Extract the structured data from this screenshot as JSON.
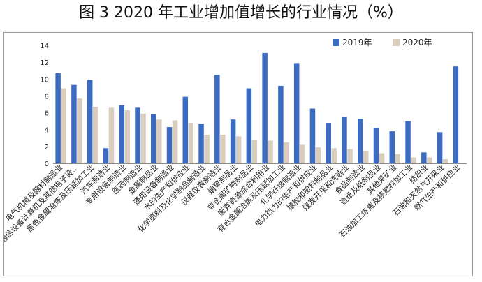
{
  "title": "图 3 2020 年工业增加值增长的行业情况（%）",
  "colors": {
    "s2019": "#3b6cc2",
    "s2020": "#d9cdbd"
  },
  "chart_data": {
    "type": "bar",
    "title": "",
    "xlabel": "",
    "ylabel": "",
    "ylim": [
      0,
      14
    ],
    "yticks": [
      0,
      2,
      4,
      6,
      8,
      10,
      12,
      14
    ],
    "grid": false,
    "legend_position": "top-right",
    "categories": [
      "电气机械及器材制造业",
      "通信设备计算机及其他电子设…",
      "黑色金属冶炼及压延加工业",
      "汽车制造业",
      "专用设备制造业",
      "医药制造业",
      "金属制品业",
      "通用设备制造业",
      "水的生产和供应业",
      "化学原料及化学制品制造业",
      "仪器仪表制造业",
      "烟草制品业",
      "非金属矿物制品业",
      "废弃资源综合利用业",
      "有色金属冶炼及压延加工业",
      "化学纤维制造业",
      "电力热力的生产和供应业",
      "橡胶和塑料制品业",
      "煤炭开采和洗选业",
      "食品制造业",
      "造纸及纸制品业",
      "其他采矿业",
      "石油加工炼焦及核燃料加工业",
      "纺织业",
      "石油和天然气开采业",
      "燃气生产和供应业"
    ],
    "series": [
      {
        "name": "2019年",
        "values": [
          10.7,
          9.3,
          9.9,
          1.8,
          6.9,
          6.6,
          5.8,
          4.3,
          7.9,
          4.7,
          10.5,
          5.2,
          8.9,
          13.1,
          9.2,
          11.9,
          6.5,
          4.8,
          5.5,
          5.3,
          4.2,
          3.8,
          5.0,
          1.3,
          3.7,
          11.5
        ]
      },
      {
        "name": "2020年",
        "values": [
          8.9,
          7.7,
          6.7,
          6.6,
          6.3,
          5.9,
          5.2,
          5.1,
          4.8,
          3.4,
          3.4,
          3.2,
          2.8,
          2.7,
          2.5,
          2.2,
          1.9,
          1.8,
          1.7,
          1.5,
          1.2,
          1.1,
          0.7,
          0.7,
          0.5,
          0.0
        ]
      }
    ]
  }
}
